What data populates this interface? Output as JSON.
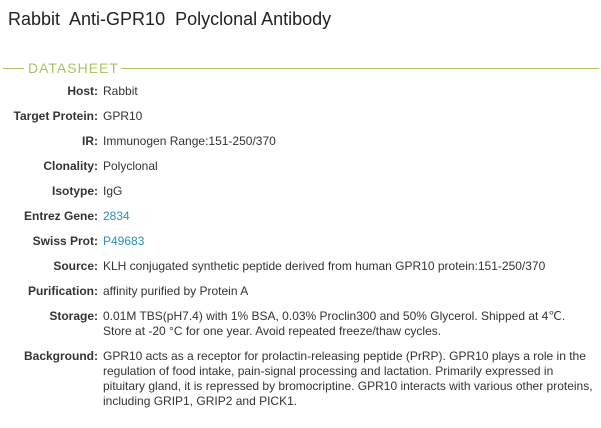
{
  "title": "Rabbit  Anti-GPR10  Polyclonal Antibody",
  "section": "DATASHEET",
  "colors": {
    "accent": "#a6c463",
    "link": "#2a8fbd"
  },
  "rows": [
    {
      "label": "Host:",
      "value": "Rabbit"
    },
    {
      "label": "Target Protein:",
      "value": "GPR10"
    },
    {
      "label": "IR:",
      "value": "Immunogen Range:151-250/370"
    },
    {
      "label": "Clonality:",
      "value": "Polyclonal"
    },
    {
      "label": "Isotype:",
      "value": "IgG"
    },
    {
      "label": "Entrez Gene:",
      "value": "2834"
    },
    {
      "label": "Swiss Prot:",
      "value": "P49683"
    },
    {
      "label": "Source:",
      "value": "KLH conjugated synthetic peptide derived from human GPR10 protein:151-250/370"
    },
    {
      "label": "Purification:",
      "value": "affinity purified by Protein A"
    },
    {
      "label": "Storage:",
      "value": "0.01M TBS(pH7.4) with 1% BSA, 0.03% Proclin300 and 50% Glycerol. Shipped at 4℃. Store at -20 °C for one year. Avoid repeated freeze/thaw cycles."
    },
    {
      "label": "Background:",
      "value": "GPR10 acts as a receptor for prolactin-releasing peptide (PrRP). GPR10 plays a role in the regulation of food intake, pain-signal processing and lactation. Primarily expressed in pituitary gland, it is repressed by bromocriptine. GPR10 interacts with various other proteins, including GRIP1, GRIP2 and PICK1."
    }
  ]
}
